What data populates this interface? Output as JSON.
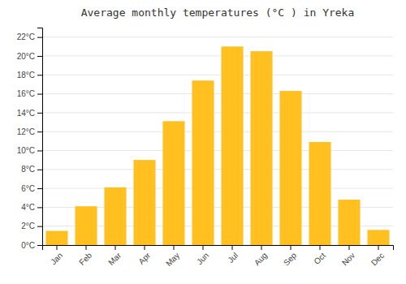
{
  "chart_data": {
    "type": "bar",
    "title": "Average monthly temperatures (°C ) in Yreka",
    "categories": [
      "Jan",
      "Feb",
      "Mar",
      "Apr",
      "May",
      "Jun",
      "Jul",
      "Aug",
      "Sep",
      "Oct",
      "Nov",
      "Dec"
    ],
    "values": [
      1.5,
      4.1,
      6.1,
      9.0,
      13.1,
      17.4,
      21.0,
      20.5,
      16.3,
      10.9,
      4.8,
      1.6
    ],
    "color": "#FFC020",
    "ylim": [
      0,
      23
    ],
    "yticks": [
      {
        "value": 0,
        "label": "0°C"
      },
      {
        "value": 2,
        "label": "2°C"
      },
      {
        "value": 4,
        "label": "4°C"
      },
      {
        "value": 6,
        "label": "6°C"
      },
      {
        "value": 8,
        "label": "8°C"
      },
      {
        "value": 10,
        "label": "10°C"
      },
      {
        "value": 12,
        "label": "12°C"
      },
      {
        "value": 14,
        "label": "14°C"
      },
      {
        "value": 16,
        "label": "16°C"
      },
      {
        "value": 18,
        "label": "18°C"
      },
      {
        "value": 20,
        "label": "20°C"
      },
      {
        "value": 22,
        "label": "22°C"
      }
    ],
    "grid": true
  }
}
